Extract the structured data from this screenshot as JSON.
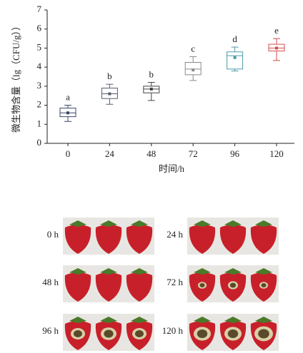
{
  "chart_data": {
    "type": "box",
    "x_label": "时间/h",
    "y_label": "微生物含量（lg（CFU/g））",
    "categories": [
      "0",
      "24",
      "48",
      "72",
      "96",
      "120"
    ],
    "boxes": [
      {
        "min": 1.15,
        "q1": 1.4,
        "median": 1.6,
        "q3": 1.85,
        "max": 2.0,
        "mean": 1.6,
        "letter": "a",
        "color": "#3a4a66"
      },
      {
        "min": 2.05,
        "q1": 2.35,
        "median": 2.6,
        "q3": 2.9,
        "max": 3.1,
        "mean": 2.6,
        "letter": "b",
        "color": "#556070"
      },
      {
        "min": 2.25,
        "q1": 2.65,
        "median": 2.85,
        "q3": 3.0,
        "max": 3.2,
        "mean": 2.85,
        "letter": "b",
        "color": "#444444"
      },
      {
        "min": 3.3,
        "q1": 3.6,
        "median": 3.9,
        "q3": 4.25,
        "max": 4.55,
        "mean": 3.85,
        "letter": "c",
        "color": "#8a8a8a"
      },
      {
        "min": 3.8,
        "q1": 3.9,
        "median": 4.6,
        "q3": 4.8,
        "max": 5.05,
        "mean": 4.5,
        "letter": "d",
        "color": "#4a9aa8"
      },
      {
        "min": 4.35,
        "q1": 4.85,
        "median": 5.0,
        "q3": 5.2,
        "max": 5.5,
        "mean": 5.0,
        "letter": "e",
        "color": "#d84a4a"
      }
    ],
    "ylim": [
      0,
      7
    ],
    "yticks": [
      0,
      1,
      2,
      3,
      4,
      5,
      6,
      7
    ]
  },
  "photo_grid": [
    {
      "label": "0 h"
    },
    {
      "label": "24 h"
    },
    {
      "label": "48 h"
    },
    {
      "label": "72 h"
    },
    {
      "label": "96 h"
    },
    {
      "label": "120 h"
    }
  ]
}
